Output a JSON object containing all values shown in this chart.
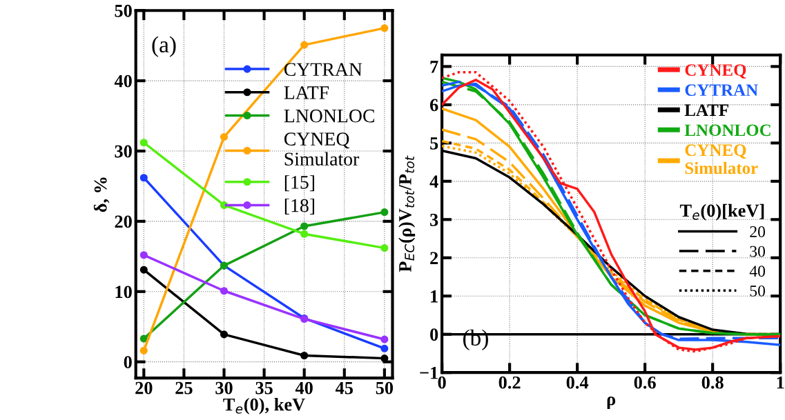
{
  "chart_data": [
    {
      "type": "line",
      "xlabel": "T$_{e}$(0), keV",
      "ylabel": "δ, %",
      "x": [
        20,
        30,
        40,
        50
      ],
      "xlim": [
        19,
        51
      ],
      "ylim": [
        -2.3,
        50
      ],
      "xticks": [
        20,
        25,
        30,
        35,
        40,
        45,
        50
      ],
      "yticks": [
        0,
        10,
        20,
        30,
        40,
        50
      ],
      "grid": true,
      "legend": "right",
      "marker": "circle",
      "line_style": "solid",
      "annotations": [
        "(a)"
      ],
      "series": [
        {
          "name": "CYTRAN",
          "color": "#1a3cff",
          "values": [
            26.2,
            13.7,
            6.2,
            1.9
          ]
        },
        {
          "name": "LATF",
          "color": "#000000",
          "values": [
            13.1,
            3.9,
            0.9,
            0.5
          ]
        },
        {
          "name": "LNONLOC",
          "color": "#14a014",
          "values": [
            3.3,
            13.7,
            19.3,
            21.3
          ]
        },
        {
          "name": "CYNEQ\nSimulator",
          "color": "#ffa500",
          "values": [
            1.6,
            32,
            45.1,
            47.5
          ]
        },
        {
          "name": "[15]",
          "color": "#55ee11",
          "values": [
            31.2,
            22.3,
            18.2,
            16.2
          ]
        },
        {
          "name": "[18]",
          "color": "#9933ff",
          "values": [
            15.2,
            10.1,
            6.1,
            3.2
          ]
        }
      ]
    },
    {
      "type": "line",
      "xlabel": "ρ",
      "ylabel": "P$_{EC}$(ρ)V$_{tot}$/P$_{tot}$",
      "xlim": [
        0,
        1
      ],
      "ylim": [
        -1,
        7.3
      ],
      "xticks": [
        0,
        0.2,
        0.4,
        0.6,
        0.8,
        1
      ],
      "yticks": [
        -1,
        0,
        1,
        2,
        3,
        4,
        5,
        6,
        7
      ],
      "grid": true,
      "legend": "right",
      "legend_title": "T$_{e}$(0)[keV]",
      "annotations": [
        "(b)",
        "20",
        "30",
        "40",
        "50"
      ],
      "ref_lines": [
        {
          "axis": "y",
          "value": 0,
          "color": "#000000",
          "line_style": "solid"
        }
      ],
      "series": [
        {
          "name": "CYNEQ\nSimulator",
          "color": "#ffaa00",
          "line_style": "solid",
          "x": [
            0,
            0.1,
            0.2,
            0.3,
            0.4,
            0.5,
            0.6,
            0.7,
            0.8,
            0.9,
            1
          ],
          "values": [
            5.9,
            5.6,
            4.9,
            3.8,
            2.6,
            1.5,
            0.75,
            0.3,
            0.07,
            0,
            0
          ]
        },
        {
          "color": "#ffaa00",
          "line_style": "long dashed",
          "x": [
            0,
            0.1,
            0.2,
            0.3,
            0.4,
            0.5,
            0.6,
            0.7,
            0.8,
            0.9,
            1
          ],
          "values": [
            5.35,
            5.1,
            4.5,
            3.55,
            2.55,
            1.55,
            0.85,
            0.35,
            0.08,
            0,
            0
          ]
        },
        {
          "color": "#ffaa00",
          "line_style": "dashed",
          "x": [
            0,
            0.1,
            0.2,
            0.3,
            0.4,
            0.5,
            0.6,
            0.7,
            0.8,
            0.9,
            1
          ],
          "values": [
            5.05,
            4.85,
            4.3,
            3.45,
            2.55,
            1.6,
            0.9,
            0.38,
            0.1,
            0.01,
            0
          ]
        },
        {
          "color": "#ffaa00",
          "line_style": "dotted",
          "x": [
            0,
            0.1,
            0.2,
            0.3,
            0.4,
            0.5,
            0.6,
            0.7,
            0.8,
            0.9,
            1
          ],
          "values": [
            4.92,
            4.75,
            4.2,
            3.4,
            2.55,
            1.65,
            0.95,
            0.4,
            0.1,
            0.01,
            0
          ]
        },
        {
          "name": "LATF",
          "color": "#000000",
          "line_style": "solid",
          "x": [
            0,
            0.1,
            0.2,
            0.3,
            0.4,
            0.5,
            0.6,
            0.7,
            0.8,
            0.9,
            1
          ],
          "values": [
            4.8,
            4.6,
            4.1,
            3.4,
            2.6,
            1.75,
            1.0,
            0.45,
            0.12,
            0.01,
            0
          ]
        },
        {
          "name": "LNONLOC",
          "color": "#11aa11",
          "line_style": "solid",
          "x": [
            0,
            0.05,
            0.1,
            0.2,
            0.3,
            0.4,
            0.5,
            0.6,
            0.7,
            0.8,
            0.9,
            1
          ],
          "values": [
            6.7,
            6.6,
            6.4,
            5.5,
            4.1,
            2.6,
            1.3,
            0.5,
            0.15,
            0.03,
            0,
            0
          ]
        },
        {
          "color": "#11aa11",
          "line_style": "long dashed",
          "x": [
            0,
            0.1,
            0.2,
            0.3,
            0.4,
            0.5,
            0.6,
            0.7,
            0.8,
            0.9,
            1
          ],
          "values": [
            6.6,
            6.35,
            5.55,
            4.2,
            2.65,
            1.3,
            0.5,
            0.15,
            0.03,
            0,
            0
          ]
        },
        {
          "name": "CYTRAN",
          "color": "#1a5cff",
          "line_style": "solid",
          "x": [
            0,
            0.05,
            0.1,
            0.15,
            0.2,
            0.3,
            0.4,
            0.5,
            0.55,
            0.6,
            0.65,
            0.7,
            0.8,
            0.9,
            1
          ],
          "values": [
            6.35,
            6.5,
            6.55,
            6.2,
            5.9,
            4.6,
            3.0,
            1.5,
            0.8,
            0.3,
            0,
            -0.15,
            -0.15,
            -0.2,
            -0.28
          ]
        },
        {
          "color": "#1a5cff",
          "line_style": "long dashed",
          "x": [
            0,
            0.05,
            0.1,
            0.2,
            0.3,
            0.4,
            0.5,
            0.6,
            0.65,
            0.7,
            0.8,
            0.9,
            1
          ],
          "values": [
            6.5,
            6.6,
            6.5,
            5.95,
            4.7,
            3.1,
            1.5,
            0.3,
            0,
            -0.12,
            -0.1,
            -0.1,
            -0.1
          ]
        },
        {
          "name": "CYNEQ",
          "color": "#ff1a1a",
          "line_style": "solid",
          "x": [
            0,
            0.05,
            0.1,
            0.15,
            0.2,
            0.3,
            0.35,
            0.4,
            0.45,
            0.5,
            0.55,
            0.6,
            0.63,
            0.7,
            0.75,
            0.8,
            0.85,
            0.9,
            1
          ],
          "values": [
            6.0,
            6.45,
            6.65,
            6.4,
            5.8,
            4.6,
            3.95,
            3.8,
            3.2,
            2.1,
            1.3,
            0.6,
            0,
            -0.35,
            -0.4,
            -0.35,
            -0.2,
            -0.1,
            -0.05
          ]
        },
        {
          "color": "#ff1a1a",
          "line_style": "dotted",
          "x": [
            0,
            0.05,
            0.1,
            0.2,
            0.3,
            0.4,
            0.5,
            0.55,
            0.6,
            0.65,
            0.7,
            0.75,
            0.8,
            0.85,
            0.9,
            1
          ],
          "values": [
            6.7,
            6.85,
            6.85,
            6.1,
            4.9,
            3.3,
            1.7,
            0.95,
            0.3,
            -0.1,
            -0.4,
            -0.45,
            -0.35,
            -0.25,
            -0.1,
            -0.05
          ]
        }
      ]
    }
  ]
}
